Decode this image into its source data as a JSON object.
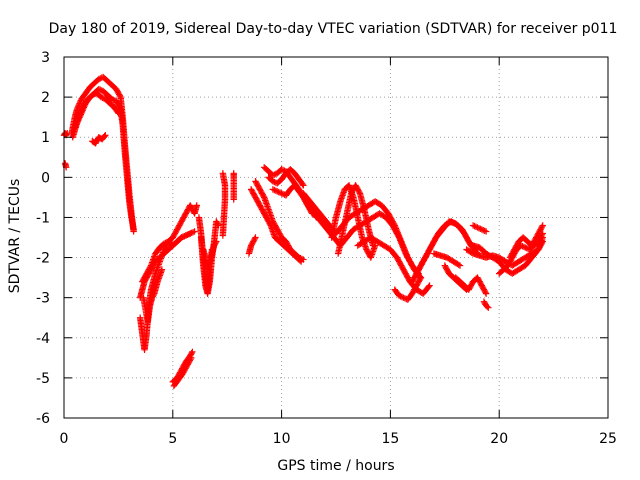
{
  "chart_data": {
    "type": "scatter",
    "title": "Day 180 of 2019, Sidereal Day-to-day VTEC variation (SDTVAR) for receiver p011",
    "xlabel": "GPS time / hours",
    "ylabel": "SDTVAR / TECUs",
    "xlim": [
      0,
      25
    ],
    "ylim": [
      -6,
      3
    ],
    "xticks": [
      0,
      5,
      10,
      15,
      20,
      25
    ],
    "yticks": [
      -6,
      -5,
      -4,
      -3,
      -2,
      -1,
      0,
      1,
      2,
      3
    ],
    "xtick_labels": [
      "0",
      "5",
      "10",
      "15",
      "20",
      "25"
    ],
    "ytick_labels": [
      "-6",
      "-5",
      "-4",
      "-3",
      "-2",
      "-1",
      "0",
      "1",
      "2",
      "3"
    ],
    "grid": true,
    "marker": "+",
    "color": "#ff0000",
    "series": [
      {
        "name": "s1",
        "x": [
          0.0,
          0.05,
          0.1,
          0.15
        ],
        "y": [
          1.05,
          1.1,
          1.05,
          1.1
        ]
      },
      {
        "name": "s2",
        "x": [
          0.05,
          0.1
        ],
        "y": [
          0.35,
          0.25
        ]
      },
      {
        "name": "s3",
        "x": [
          0.35,
          0.5,
          0.6,
          0.8,
          1.0,
          1.2,
          1.4,
          1.6,
          1.8,
          2.0,
          2.2,
          2.4,
          2.6,
          2.7,
          2.8,
          2.9,
          3.0,
          3.1,
          3.2
        ],
        "y": [
          1.1,
          1.5,
          1.7,
          1.95,
          2.1,
          2.25,
          2.35,
          2.45,
          2.5,
          2.4,
          2.3,
          2.2,
          2.0,
          1.5,
          0.8,
          0.2,
          -0.4,
          -0.9,
          -1.35
        ]
      },
      {
        "name": "s4",
        "x": [
          0.4,
          0.6,
          0.8,
          1.0,
          1.2,
          1.4,
          1.6,
          1.8,
          2.0,
          2.2,
          2.4,
          2.6,
          2.7,
          2.8,
          2.9,
          3.0,
          3.1,
          3.2
        ],
        "y": [
          1.0,
          1.35,
          1.6,
          1.85,
          2.0,
          2.1,
          2.2,
          2.15,
          2.05,
          1.95,
          1.9,
          1.7,
          1.3,
          0.6,
          0.0,
          -0.6,
          -1.0,
          -1.3
        ]
      },
      {
        "name": "s5",
        "x": [
          0.45,
          0.7,
          0.9,
          1.1,
          1.3,
          1.5,
          1.7,
          1.9,
          2.1,
          2.3,
          2.5
        ],
        "y": [
          1.2,
          1.55,
          1.8,
          1.95,
          2.05,
          2.1,
          2.0,
          1.95,
          1.85,
          1.75,
          1.6
        ]
      },
      {
        "name": "s6",
        "x": [
          1.3,
          1.45,
          1.6,
          1.75,
          1.9
        ],
        "y": [
          0.9,
          0.85,
          1.0,
          0.95,
          1.05
        ]
      },
      {
        "name": "s7",
        "x": [
          3.5,
          3.6,
          3.7,
          3.8,
          3.9,
          4.0,
          4.2,
          4.4,
          4.6,
          4.8,
          5.0,
          5.2,
          5.4,
          5.6,
          5.8,
          6.0,
          6.1
        ],
        "y": [
          -3.5,
          -3.9,
          -4.3,
          -3.9,
          -3.2,
          -2.8,
          -2.4,
          -2.1,
          -1.8,
          -1.6,
          -1.5,
          -1.3,
          -1.1,
          -0.9,
          -0.7,
          -0.9,
          -0.7
        ]
      },
      {
        "name": "s8",
        "x": [
          3.5,
          3.6,
          3.7,
          3.8,
          4.0,
          4.2,
          4.4,
          4.6,
          4.8,
          5.0,
          5.2,
          5.4,
          5.6,
          5.8,
          6.0
        ],
        "y": [
          -3.0,
          -2.8,
          -2.6,
          -2.5,
          -2.3,
          -2.1,
          -2.0,
          -1.9,
          -1.8,
          -1.7,
          -1.6,
          -1.5,
          -1.45,
          -1.4,
          -1.35
        ]
      },
      {
        "name": "s9",
        "x": [
          3.6,
          3.8,
          4.0,
          4.2,
          4.4,
          4.6,
          4.8,
          5.0,
          5.2,
          5.4,
          5.6,
          5.8
        ],
        "y": [
          -2.6,
          -2.4,
          -2.2,
          -1.9,
          -1.75,
          -1.65,
          -1.6,
          -1.7,
          -1.6,
          -1.5,
          -1.45,
          -1.4
        ]
      },
      {
        "name": "s10",
        "x": [
          3.65,
          3.75,
          3.85,
          3.95,
          4.05,
          4.15,
          4.3,
          4.5
        ],
        "y": [
          -3.0,
          -3.3,
          -3.6,
          -3.2,
          -3.0,
          -2.9,
          -2.6,
          -2.3
        ]
      },
      {
        "name": "s11",
        "x": [
          5.0,
          5.2,
          5.4,
          5.6,
          5.8,
          5.9
        ],
        "y": [
          -5.1,
          -5.0,
          -4.8,
          -4.6,
          -4.45,
          -4.35
        ]
      },
      {
        "name": "s12",
        "x": [
          5.05,
          5.25,
          5.45,
          5.65,
          5.85
        ],
        "y": [
          -5.2,
          -5.05,
          -4.9,
          -4.7,
          -4.5
        ]
      },
      {
        "name": "s13",
        "x": [
          6.2,
          6.3,
          6.4,
          6.5,
          6.6,
          6.7,
          6.8
        ],
        "y": [
          -1.0,
          -1.4,
          -2.0,
          -2.5,
          -2.8,
          -2.3,
          -1.8
        ]
      },
      {
        "name": "s14",
        "x": [
          6.3,
          6.4,
          6.5,
          6.6,
          6.7,
          6.8,
          6.9,
          7.0,
          7.1
        ],
        "y": [
          -1.5,
          -2.2,
          -2.7,
          -2.9,
          -2.6,
          -2.0,
          -1.6,
          -1.1,
          -1.2
        ]
      },
      {
        "name": "s15",
        "x": [
          6.4,
          6.5,
          6.6,
          6.7,
          6.8,
          6.9,
          7.0
        ],
        "y": [
          -1.8,
          -2.0,
          -2.3,
          -2.1,
          -1.9,
          -1.7,
          -1.6
        ]
      },
      {
        "name": "s16",
        "x": [
          7.3,
          7.4,
          7.4,
          7.3
        ],
        "y": [
          0.1,
          -0.2,
          -0.55,
          -1.45
        ]
      },
      {
        "name": "s17",
        "x": [
          7.8,
          7.8,
          7.8
        ],
        "y": [
          0.1,
          0.0,
          -0.55
        ]
      },
      {
        "name": "s18",
        "x": [
          8.5,
          8.6,
          8.7,
          8.8
        ],
        "y": [
          -1.9,
          -1.7,
          -1.6,
          -1.5
        ]
      },
      {
        "name": "s19",
        "x": [
          8.6,
          8.7,
          8.9,
          9.1,
          9.3,
          9.5,
          9.7,
          9.9,
          10.1,
          10.3,
          10.5,
          10.7,
          10.9
        ],
        "y": [
          -0.3,
          -0.4,
          -0.6,
          -0.8,
          -1.0,
          -1.2,
          -1.5,
          -1.6,
          -1.7,
          -1.8,
          -1.9,
          -2.0,
          -2.1
        ]
      },
      {
        "name": "s20",
        "x": [
          8.8,
          9.0,
          9.2,
          9.4,
          9.6,
          9.8,
          10.0,
          10.2,
          10.4,
          10.6,
          10.8,
          11.0
        ],
        "y": [
          -0.1,
          -0.3,
          -0.5,
          -0.8,
          -1.1,
          -1.3,
          -1.5,
          -1.6,
          -1.8,
          -1.9,
          -2.0,
          -2.05
        ]
      },
      {
        "name": "s21",
        "x": [
          9.2,
          9.4,
          9.6,
          9.8,
          10.0,
          10.2,
          10.4,
          10.6,
          10.8,
          11.0,
          11.2,
          11.4,
          11.6
        ],
        "y": [
          0.25,
          0.15,
          0.05,
          0.1,
          0.2,
          0.15,
          0.0,
          -0.15,
          -0.3,
          -0.5,
          -0.7,
          -0.85,
          -1.0
        ]
      },
      {
        "name": "s22",
        "x": [
          9.4,
          9.6,
          9.8,
          10.0,
          10.2,
          10.4,
          10.6,
          10.8,
          11.0
        ],
        "y": [
          0.0,
          -0.1,
          -0.15,
          -0.05,
          0.1,
          0.2,
          0.1,
          -0.05,
          -0.2
        ]
      },
      {
        "name": "s23",
        "x": [
          9.6,
          9.8,
          10.0,
          10.2,
          10.4,
          10.6,
          10.8,
          11.0,
          11.2,
          11.4
        ],
        "y": [
          -0.3,
          -0.35,
          -0.4,
          -0.45,
          -0.3,
          -0.2,
          -0.35,
          -0.5,
          -0.7,
          -0.9
        ]
      },
      {
        "name": "s24",
        "x": [
          11.0,
          11.3,
          11.6,
          11.9,
          12.2,
          12.5,
          12.8,
          13.1,
          13.4,
          13.7,
          14.0,
          14.3,
          14.6,
          14.9,
          15.2,
          15.5,
          15.8,
          16.1,
          16.4
        ],
        "y": [
          -0.4,
          -0.6,
          -0.8,
          -1.0,
          -1.2,
          -1.4,
          -1.2,
          -1.0,
          -0.9,
          -0.8,
          -0.7,
          -0.6,
          -0.7,
          -0.9,
          -1.2,
          -1.6,
          -2.0,
          -2.3,
          -2.5
        ]
      },
      {
        "name": "s25",
        "x": [
          11.2,
          11.5,
          11.8,
          12.1,
          12.4,
          12.7,
          13.0,
          13.3,
          13.6,
          13.9,
          14.2,
          14.5,
          14.8,
          15.1,
          15.4,
          15.7,
          16.0,
          16.3
        ],
        "y": [
          -0.7,
          -0.9,
          -1.1,
          -1.3,
          -1.5,
          -1.7,
          -1.5,
          -1.3,
          -1.2,
          -1.1,
          -1.0,
          -0.9,
          -1.0,
          -1.2,
          -1.5,
          -1.9,
          -2.2,
          -2.4
        ]
      },
      {
        "name": "s26",
        "x": [
          12.3,
          12.5,
          12.7,
          12.9,
          13.1,
          13.3,
          13.5,
          13.7,
          13.9,
          14.1,
          14.3
        ],
        "y": [
          -1.5,
          -1.0,
          -0.6,
          -0.3,
          -0.2,
          -0.5,
          -1.0,
          -1.5,
          -1.8,
          -2.0,
          -1.7
        ]
      },
      {
        "name": "s27",
        "x": [
          12.6,
          12.8,
          13.0,
          13.2,
          13.4,
          13.6,
          13.8,
          14.0,
          14.2
        ],
        "y": [
          -1.9,
          -1.4,
          -0.9,
          -0.4,
          -0.2,
          -0.4,
          -0.8,
          -1.3,
          -1.7
        ]
      },
      {
        "name": "s28",
        "x": [
          13.5,
          13.8,
          14.1,
          14.4,
          14.7,
          15.0,
          15.3,
          15.6,
          15.9,
          16.2,
          16.5,
          16.8
        ],
        "y": [
          -1.7,
          -1.6,
          -1.5,
          -1.6,
          -1.7,
          -1.8,
          -2.0,
          -2.3,
          -2.6,
          -2.8,
          -2.9,
          -2.7
        ]
      },
      {
        "name": "s29",
        "x": [
          15.2,
          15.4,
          15.6,
          15.8,
          16.0,
          16.2,
          16.4
        ],
        "y": [
          -2.8,
          -2.95,
          -3.0,
          -3.05,
          -2.9,
          -2.7,
          -2.5
        ]
      },
      {
        "name": "s30",
        "x": [
          16.0,
          16.3,
          16.6,
          16.9,
          17.2,
          17.5,
          17.8,
          18.1,
          18.4,
          18.7,
          19.0
        ],
        "y": [
          -2.6,
          -2.3,
          -2.0,
          -1.7,
          -1.4,
          -1.2,
          -1.1,
          -1.2,
          -1.4,
          -1.7,
          -1.9
        ]
      },
      {
        "name": "s31",
        "x": [
          16.2,
          16.5,
          16.8,
          17.1,
          17.4,
          17.7,
          18.0,
          18.3,
          18.6,
          18.9
        ],
        "y": [
          -2.4,
          -2.1,
          -1.8,
          -1.5,
          -1.3,
          -1.1,
          -1.15,
          -1.3,
          -1.6,
          -1.8
        ]
      },
      {
        "name": "s32",
        "x": [
          17.0,
          17.3,
          17.6,
          17.9,
          18.2
        ],
        "y": [
          -1.9,
          -1.95,
          -2.0,
          -2.1,
          -2.2
        ]
      },
      {
        "name": "s33",
        "x": [
          17.5,
          17.7,
          17.9,
          18.1,
          18.3,
          18.5
        ],
        "y": [
          -2.2,
          -2.4,
          -2.5,
          -2.6,
          -2.7,
          -2.8
        ]
      },
      {
        "name": "s34",
        "x": [
          18.0,
          18.2,
          18.4,
          18.6,
          18.8,
          19.0,
          19.2,
          19.4
        ],
        "y": [
          -2.5,
          -2.6,
          -2.7,
          -2.8,
          -2.6,
          -2.5,
          -2.7,
          -2.9
        ]
      },
      {
        "name": "s35",
        "x": [
          18.8,
          19.0,
          19.2,
          19.4
        ],
        "y": [
          -1.2,
          -1.25,
          -1.3,
          -1.35
        ]
      },
      {
        "name": "s36",
        "x": [
          19.3,
          19.4,
          19.5
        ],
        "y": [
          -3.1,
          -3.2,
          -3.25
        ]
      },
      {
        "name": "s37",
        "x": [
          18.5,
          18.8,
          19.1,
          19.4,
          19.7,
          20.0,
          20.3,
          20.6,
          20.9,
          21.2,
          21.5,
          21.8,
          22.0
        ],
        "y": [
          -1.8,
          -1.9,
          -1.95,
          -2.0,
          -1.95,
          -2.0,
          -2.1,
          -2.2,
          -2.1,
          -2.0,
          -1.9,
          -1.8,
          -1.6
        ]
      },
      {
        "name": "s38",
        "x": [
          18.8,
          19.1,
          19.4,
          19.7,
          20.0,
          20.3,
          20.6,
          20.9,
          21.2,
          21.5,
          21.8,
          22.0
        ],
        "y": [
          -1.7,
          -1.75,
          -1.9,
          -2.0,
          -2.1,
          -2.3,
          -2.4,
          -2.3,
          -2.2,
          -2.0,
          -1.8,
          -1.5
        ]
      },
      {
        "name": "s39",
        "x": [
          20.0,
          20.2,
          20.4,
          20.6,
          20.8,
          21.0,
          21.2,
          21.4,
          21.6,
          21.8,
          22.0
        ],
        "y": [
          -2.4,
          -2.3,
          -2.2,
          -2.0,
          -1.8,
          -1.7,
          -1.75,
          -1.8,
          -1.7,
          -1.6,
          -1.4
        ]
      },
      {
        "name": "s40",
        "x": [
          20.5,
          20.7,
          20.9,
          21.1,
          21.3,
          21.5,
          21.7,
          21.9,
          22.0
        ],
        "y": [
          -2.0,
          -1.8,
          -1.6,
          -1.5,
          -1.6,
          -1.7,
          -1.5,
          -1.3,
          -1.2
        ]
      }
    ]
  }
}
